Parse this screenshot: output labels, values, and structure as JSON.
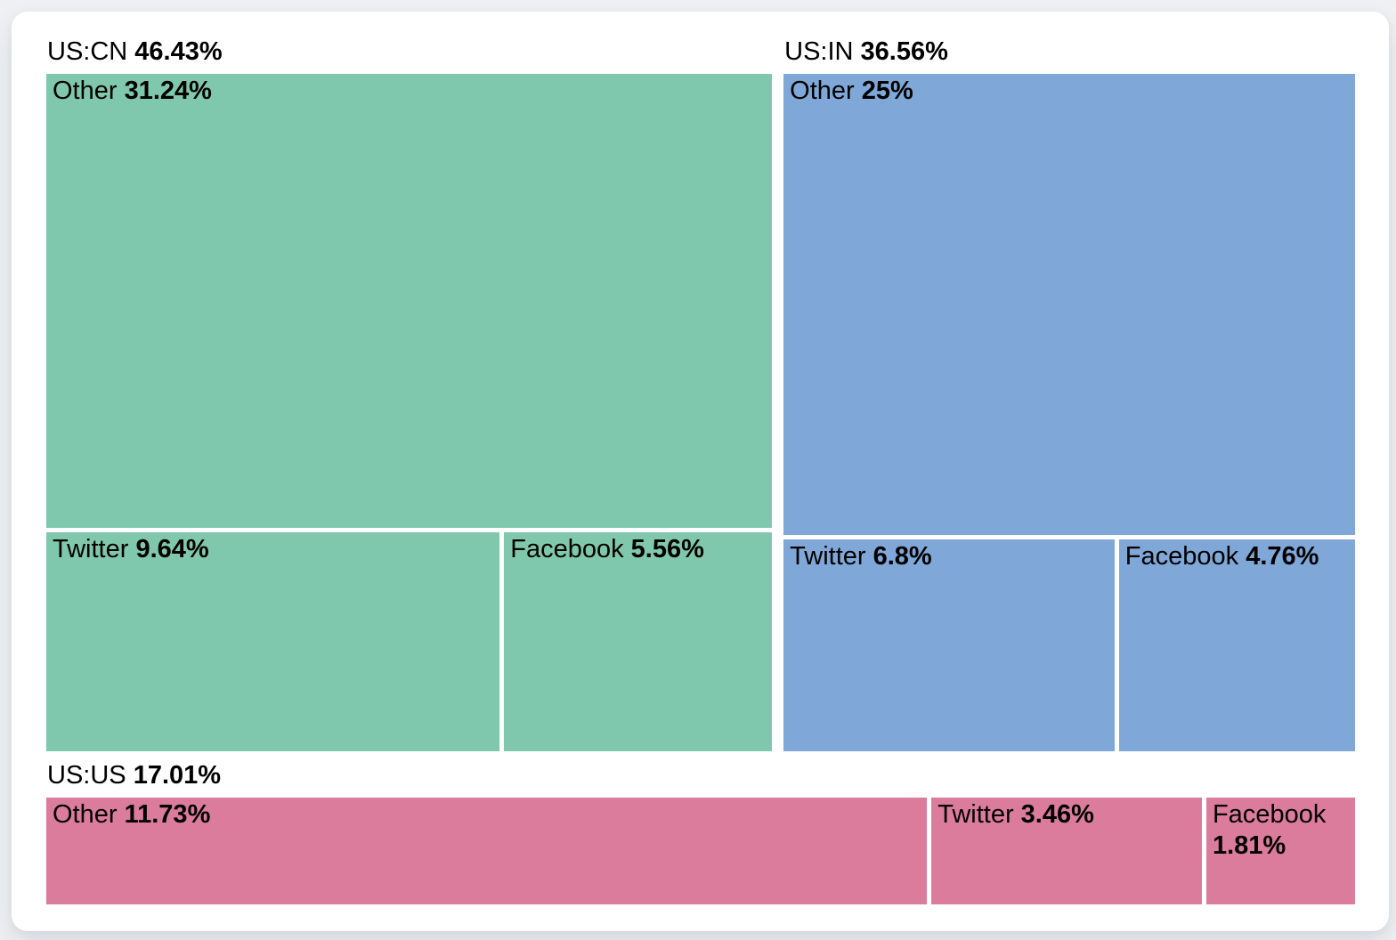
{
  "page": {
    "background_color": "#eef0f3",
    "card_background_color": "#ffffff",
    "text_color": "#000000"
  },
  "chart_data": {
    "type": "treemap",
    "unit": "%",
    "layout": "Top row: US:CN group left and US:IN group right, each with Other on top and Twitter/Facebook side-by-side below; bottom full-width strip: US:US group with Other, Twitter, Facebook in one horizontal row. Group header label sits above each group block. White gaps separate tiles.",
    "groups": [
      {
        "label": "US:CN",
        "value": 46.43,
        "value_label": "46.43%",
        "color": "#80c8ad",
        "children": [
          {
            "label": "Other",
            "value": 31.24,
            "value_label": "31.24%"
          },
          {
            "label": "Twitter",
            "value": 9.64,
            "value_label": "9.64%"
          },
          {
            "label": "Facebook",
            "value": 5.56,
            "value_label": "5.56%"
          }
        ]
      },
      {
        "label": "US:IN",
        "value": 36.56,
        "value_label": "36.56%",
        "color": "#7fa8d8",
        "children": [
          {
            "label": "Other",
            "value": 25,
            "value_label": "25%"
          },
          {
            "label": "Twitter",
            "value": 6.8,
            "value_label": "6.8%"
          },
          {
            "label": "Facebook",
            "value": 4.76,
            "value_label": "4.76%"
          }
        ]
      },
      {
        "label": "US:US",
        "value": 17.01,
        "value_label": "17.01%",
        "color": "#dc7c9c",
        "children": [
          {
            "label": "Other",
            "value": 11.73,
            "value_label": "11.73%"
          },
          {
            "label": "Twitter",
            "value": 3.46,
            "value_label": "3.46%"
          },
          {
            "label": "Facebook",
            "value": 1.81,
            "value_label": "1.81%"
          }
        ]
      }
    ]
  }
}
